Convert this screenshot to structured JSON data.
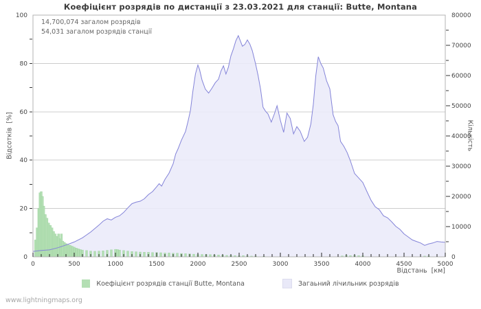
{
  "page": {
    "watermark": "www.lightningmaps.org",
    "background": "#ffffff"
  },
  "chart_data": {
    "type": [
      "bar",
      "area"
    ],
    "title": "Коефіцієнт розрядів по дистанції з 23.03.2021 для станції: Butte, Montana",
    "annotations": [
      "14,700,074 загалом розрядів",
      "54,031 загалом розрядів станції"
    ],
    "x_axis": {
      "label": "Відстань  [км]",
      "min": 0,
      "max": 5000,
      "major_step": 500,
      "minor_step": 100,
      "tick_labels": [
        "0",
        "500",
        "1000",
        "1500",
        "2000",
        "2500",
        "3000",
        "3500",
        "4000",
        "4500",
        "5000"
      ]
    },
    "y_left": {
      "label": "Відсотків  [%]",
      "min": 0,
      "max": 100,
      "ticks": [
        0,
        20,
        40,
        60,
        80,
        100
      ],
      "minor_step": 10
    },
    "y_right": {
      "label": "Кількість",
      "min": 0,
      "max": 80000,
      "ticks": [
        0,
        10000,
        20000,
        30000,
        40000,
        50000,
        60000,
        70000,
        80000
      ],
      "minor_step": 5000
    },
    "grid": true,
    "legend_position": "bottom-center",
    "legend": [
      {
        "label": "Коефіцієнт розрядів станції Butte, Montana",
        "color": "#b4dfb4",
        "type": "bar"
      },
      {
        "label": "Загаьний лічильник розрядів",
        "color": "#e9e9f8",
        "type": "area"
      }
    ],
    "colors": {
      "grid": "#cccccc",
      "border": "#b3b3b3",
      "tick": "#222222",
      "bar_fill": "#b4dfb4",
      "bar_edge": "#94cf97",
      "area_fill": "rgba(234,234,249,0.88)",
      "area_line": "#8383d8"
    },
    "series": [
      {
        "name": "station_ratio_percent",
        "type": "bar",
        "axis": "left",
        "units": "%",
        "points": [
          [
            30,
            7
          ],
          [
            50,
            12
          ],
          [
            70,
            20
          ],
          [
            85,
            26.5
          ],
          [
            100,
            27
          ],
          [
            115,
            25
          ],
          [
            130,
            21
          ],
          [
            150,
            17.5
          ],
          [
            170,
            16
          ],
          [
            190,
            14
          ],
          [
            210,
            13
          ],
          [
            230,
            12
          ],
          [
            250,
            10.5
          ],
          [
            270,
            9.5
          ],
          [
            290,
            8.5
          ],
          [
            310,
            9.5
          ],
          [
            330,
            7.5
          ],
          [
            345,
            9.5
          ],
          [
            360,
            6.5
          ],
          [
            380,
            6
          ],
          [
            400,
            5.5
          ],
          [
            425,
            5
          ],
          [
            450,
            4.8
          ],
          [
            475,
            4.4
          ],
          [
            500,
            4
          ],
          [
            525,
            3.6
          ],
          [
            550,
            3.3
          ],
          [
            575,
            3
          ],
          [
            600,
            2.8
          ],
          [
            650,
            2.6
          ],
          [
            700,
            2.4
          ],
          [
            750,
            2.3
          ],
          [
            800,
            2.4
          ],
          [
            850,
            2.5
          ],
          [
            900,
            2.7
          ],
          [
            950,
            2.9
          ],
          [
            1000,
            3.1
          ],
          [
            1025,
            3
          ],
          [
            1050,
            2.8
          ],
          [
            1100,
            2.6
          ],
          [
            1150,
            2.4
          ],
          [
            1200,
            2.2
          ],
          [
            1250,
            2.1
          ],
          [
            1300,
            2
          ],
          [
            1350,
            1.9
          ],
          [
            1400,
            1.9
          ],
          [
            1450,
            1.8
          ],
          [
            1500,
            1.8
          ],
          [
            1550,
            1.7
          ],
          [
            1600,
            1.6
          ],
          [
            1650,
            1.6
          ],
          [
            1700,
            1.5
          ],
          [
            1750,
            1.5
          ],
          [
            1800,
            1.4
          ],
          [
            1850,
            1.3
          ],
          [
            1900,
            1.2
          ],
          [
            1950,
            1.1
          ],
          [
            2000,
            1
          ],
          [
            2050,
            1
          ],
          [
            2100,
            0.9
          ],
          [
            2150,
            0.9
          ],
          [
            2200,
            0.8
          ],
          [
            2250,
            0.8
          ],
          [
            2300,
            0.7
          ],
          [
            2350,
            0.6
          ],
          [
            2400,
            0.6
          ],
          [
            2450,
            0.5
          ],
          [
            2500,
            0.4
          ],
          [
            2550,
            0.5
          ],
          [
            2600,
            0.4
          ],
          [
            2650,
            0.3
          ],
          [
            2700,
            0.3
          ],
          [
            2800,
            0.2
          ],
          [
            3750,
            0.4
          ],
          [
            3800,
            0.6
          ],
          [
            3850,
            0.5
          ],
          [
            3900,
            0.6
          ],
          [
            3950,
            0.5
          ],
          [
            4000,
            0.4
          ],
          [
            4750,
            0.3
          ],
          [
            4800,
            0.3
          ]
        ]
      },
      {
        "name": "total_strokes_count",
        "type": "area",
        "axis": "right",
        "units": "strokes",
        "points": [
          [
            0,
            1800
          ],
          [
            100,
            2100
          ],
          [
            200,
            2300
          ],
          [
            300,
            3000
          ],
          [
            400,
            3900
          ],
          [
            500,
            4900
          ],
          [
            600,
            6300
          ],
          [
            700,
            8200
          ],
          [
            800,
            10500
          ],
          [
            850,
            11800
          ],
          [
            900,
            12600
          ],
          [
            950,
            12200
          ],
          [
            1000,
            13100
          ],
          [
            1050,
            13600
          ],
          [
            1100,
            14700
          ],
          [
            1150,
            16200
          ],
          [
            1200,
            17600
          ],
          [
            1250,
            18100
          ],
          [
            1300,
            18400
          ],
          [
            1350,
            19200
          ],
          [
            1400,
            20600
          ],
          [
            1450,
            21600
          ],
          [
            1500,
            23200
          ],
          [
            1530,
            24200
          ],
          [
            1560,
            23400
          ],
          [
            1600,
            25600
          ],
          [
            1650,
            27700
          ],
          [
            1700,
            30800
          ],
          [
            1730,
            34000
          ],
          [
            1760,
            35800
          ],
          [
            1800,
            38600
          ],
          [
            1850,
            41500
          ],
          [
            1880,
            44800
          ],
          [
            1910,
            48500
          ],
          [
            1940,
            55000
          ],
          [
            1970,
            60500
          ],
          [
            2000,
            63500
          ],
          [
            2020,
            62000
          ],
          [
            2050,
            58500
          ],
          [
            2090,
            55500
          ],
          [
            2130,
            54200
          ],
          [
            2170,
            55800
          ],
          [
            2210,
            57600
          ],
          [
            2250,
            58800
          ],
          [
            2280,
            61500
          ],
          [
            2310,
            63200
          ],
          [
            2340,
            60500
          ],
          [
            2370,
            62800
          ],
          [
            2400,
            66500
          ],
          [
            2430,
            68800
          ],
          [
            2460,
            71500
          ],
          [
            2490,
            73200
          ],
          [
            2510,
            71800
          ],
          [
            2540,
            69700
          ],
          [
            2570,
            70300
          ],
          [
            2600,
            71800
          ],
          [
            2630,
            70400
          ],
          [
            2660,
            68200
          ],
          [
            2700,
            63800
          ],
          [
            2730,
            60000
          ],
          [
            2760,
            55500
          ],
          [
            2790,
            49500
          ],
          [
            2820,
            48200
          ],
          [
            2850,
            47300
          ],
          [
            2890,
            44600
          ],
          [
            2930,
            47500
          ],
          [
            2960,
            50000
          ],
          [
            3000,
            45200
          ],
          [
            3040,
            41200
          ],
          [
            3080,
            47600
          ],
          [
            3120,
            45800
          ],
          [
            3160,
            40700
          ],
          [
            3200,
            43100
          ],
          [
            3240,
            41600
          ],
          [
            3290,
            38200
          ],
          [
            3330,
            39600
          ],
          [
            3370,
            44000
          ],
          [
            3400,
            50500
          ],
          [
            3430,
            60000
          ],
          [
            3460,
            66200
          ],
          [
            3490,
            64000
          ],
          [
            3520,
            62500
          ],
          [
            3560,
            58300
          ],
          [
            3600,
            55600
          ],
          [
            3640,
            47000
          ],
          [
            3670,
            44800
          ],
          [
            3700,
            43400
          ],
          [
            3730,
            38200
          ],
          [
            3770,
            36600
          ],
          [
            3810,
            34500
          ],
          [
            3850,
            31700
          ],
          [
            3900,
            27600
          ],
          [
            3950,
            26100
          ],
          [
            4000,
            24600
          ],
          [
            4050,
            21600
          ],
          [
            4100,
            18700
          ],
          [
            4150,
            16600
          ],
          [
            4200,
            15600
          ],
          [
            4250,
            13600
          ],
          [
            4300,
            12900
          ],
          [
            4350,
            11600
          ],
          [
            4400,
            10100
          ],
          [
            4450,
            9100
          ],
          [
            4500,
            7600
          ],
          [
            4550,
            6600
          ],
          [
            4600,
            5600
          ],
          [
            4650,
            5100
          ],
          [
            4700,
            4600
          ],
          [
            4750,
            3800
          ],
          [
            4800,
            4300
          ],
          [
            4850,
            4600
          ],
          [
            4900,
            5100
          ],
          [
            4950,
            4900
          ],
          [
            5000,
            4800
          ]
        ]
      }
    ]
  }
}
